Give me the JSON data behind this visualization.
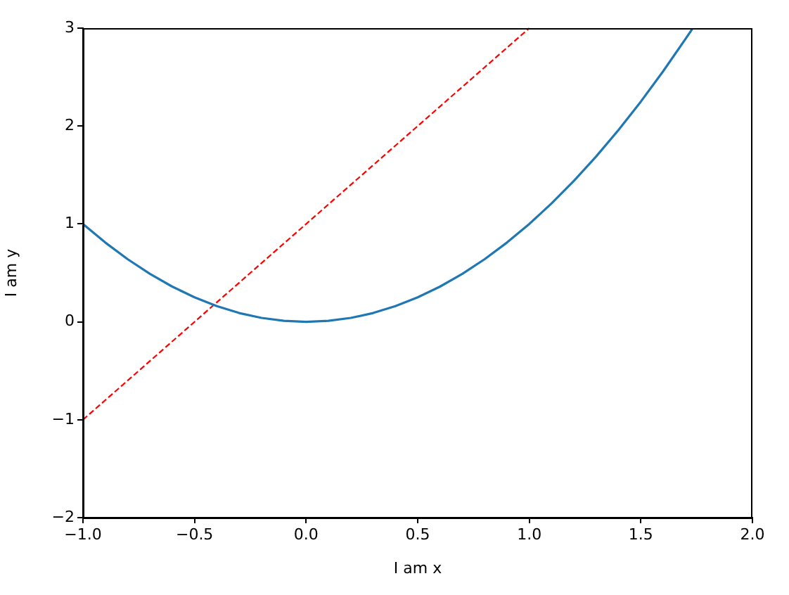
{
  "chart_data": {
    "type": "line",
    "xlabel": "I am x",
    "ylabel": "I am y",
    "xlim": [
      -1,
      2
    ],
    "ylim": [
      -2,
      3
    ],
    "xticks": [
      {
        "value": -1,
        "label": "−1.0"
      },
      {
        "value": -0.5,
        "label": "−0.5"
      },
      {
        "value": 0,
        "label": "0.0"
      },
      {
        "value": 0.5,
        "label": "0.5"
      },
      {
        "value": 1,
        "label": "1.0"
      },
      {
        "value": 1.5,
        "label": "1.5"
      },
      {
        "value": 2,
        "label": "2.0"
      }
    ],
    "yticks": [
      {
        "value": -2,
        "label": "−2"
      },
      {
        "value": -1,
        "label": "−1"
      },
      0,
      1,
      2,
      3
    ],
    "grid": false,
    "legend": false,
    "marker": "none",
    "series": [
      {
        "color": "#1f77b4",
        "line_style": "solid",
        "x": [
          -1,
          -0.9,
          -0.8,
          -0.7,
          -0.6,
          -0.5,
          -0.4,
          -0.3,
          -0.2,
          -0.1,
          0,
          0.1,
          0.2,
          0.3,
          0.4,
          0.5,
          0.6,
          0.7,
          0.8,
          0.9,
          1,
          1.1,
          1.2,
          1.3,
          1.4,
          1.5,
          1.6,
          1.7,
          1.73
        ],
        "values": [
          1,
          0.81,
          0.64,
          0.49,
          0.36,
          0.25,
          0.16,
          0.09,
          0.04,
          0.01,
          0,
          0.01,
          0.04,
          0.09,
          0.16,
          0.25,
          0.36,
          0.49,
          0.64,
          0.81,
          1,
          1.21,
          1.44,
          1.69,
          1.96,
          2.25,
          2.56,
          2.89,
          2.99
        ]
      },
      {
        "color": "#ff0000",
        "line_style": "dashed",
        "x": [
          -1,
          1
        ],
        "values": [
          -1,
          3
        ]
      }
    ]
  }
}
